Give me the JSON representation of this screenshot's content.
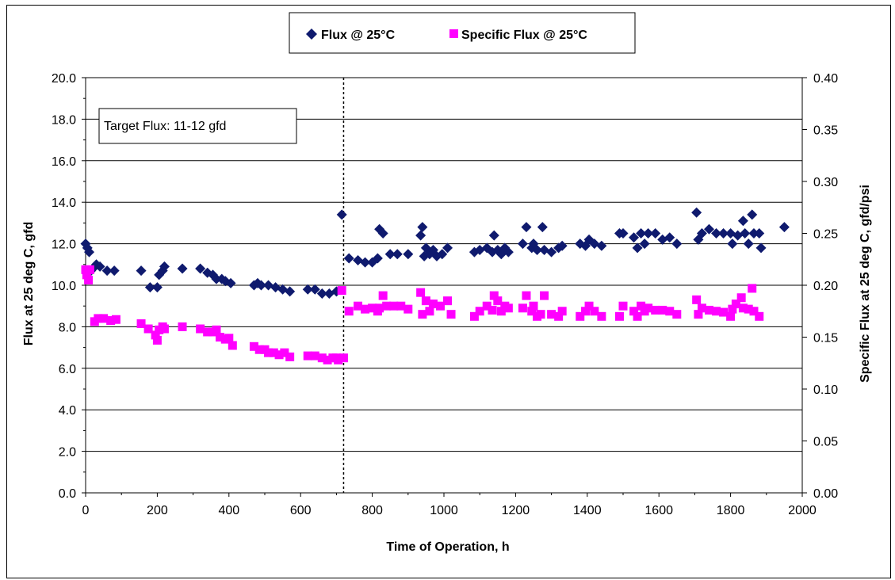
{
  "chart_data": {
    "type": "scatter",
    "title": "",
    "xlabel": "Time of Operation, h",
    "ylabel": "Flux at 25 deg C, gfd",
    "y2label": "Specific Flux at 25 deg C, gfd/psi",
    "xlim": [
      0,
      2000
    ],
    "ylim": [
      0,
      20
    ],
    "y2lim": [
      0,
      0.4
    ],
    "x_ticks": [
      "0",
      "200",
      "400",
      "600",
      "800",
      "1000",
      "1200",
      "1400",
      "1600",
      "1800",
      "2000"
    ],
    "y_ticks": [
      "0.0",
      "2.0",
      "4.0",
      "6.0",
      "8.0",
      "10.0",
      "12.0",
      "14.0",
      "16.0",
      "18.0",
      "20.0"
    ],
    "y2_ticks": [
      "0.00",
      "0.05",
      "0.10",
      "0.15",
      "0.20",
      "0.25",
      "0.30",
      "0.35",
      "0.40"
    ],
    "grid": true,
    "legend_position": "top-center",
    "annotation": "Target Flux: 11-12 gfd",
    "vline_x": 720,
    "series": [
      {
        "name": "Flux  @ 25°C",
        "axis": "left",
        "marker": "diamond",
        "color": "#0f1a6e",
        "points": [
          [
            0,
            12.0
          ],
          [
            5,
            11.8
          ],
          [
            10,
            11.6
          ],
          [
            15,
            10.7
          ],
          [
            20,
            10.8
          ],
          [
            30,
            11.0
          ],
          [
            40,
            10.9
          ],
          [
            60,
            10.7
          ],
          [
            80,
            10.7
          ],
          [
            155,
            10.7
          ],
          [
            180,
            9.9
          ],
          [
            200,
            9.9
          ],
          [
            205,
            10.5
          ],
          [
            215,
            10.7
          ],
          [
            220,
            10.9
          ],
          [
            270,
            10.8
          ],
          [
            320,
            10.8
          ],
          [
            340,
            10.6
          ],
          [
            355,
            10.5
          ],
          [
            365,
            10.3
          ],
          [
            380,
            10.3
          ],
          [
            390,
            10.2
          ],
          [
            405,
            10.1
          ],
          [
            470,
            10.0
          ],
          [
            480,
            10.1
          ],
          [
            490,
            10.0
          ],
          [
            510,
            10.0
          ],
          [
            530,
            9.9
          ],
          [
            550,
            9.8
          ],
          [
            570,
            9.7
          ],
          [
            620,
            9.8
          ],
          [
            640,
            9.8
          ],
          [
            660,
            9.6
          ],
          [
            680,
            9.6
          ],
          [
            700,
            9.7
          ],
          [
            715,
            13.4
          ],
          [
            735,
            11.3
          ],
          [
            760,
            11.2
          ],
          [
            780,
            11.1
          ],
          [
            800,
            11.1
          ],
          [
            815,
            11.3
          ],
          [
            820,
            12.7
          ],
          [
            830,
            12.5
          ],
          [
            850,
            11.5
          ],
          [
            870,
            11.5
          ],
          [
            900,
            11.5
          ],
          [
            935,
            12.4
          ],
          [
            940,
            12.8
          ],
          [
            945,
            11.4
          ],
          [
            950,
            11.8
          ],
          [
            960,
            11.5
          ],
          [
            970,
            11.7
          ],
          [
            980,
            11.4
          ],
          [
            995,
            11.5
          ],
          [
            1010,
            11.8
          ],
          [
            1085,
            11.6
          ],
          [
            1100,
            11.7
          ],
          [
            1120,
            11.8
          ],
          [
            1135,
            11.6
          ],
          [
            1140,
            12.4
          ],
          [
            1150,
            11.7
          ],
          [
            1160,
            11.5
          ],
          [
            1170,
            11.8
          ],
          [
            1180,
            11.6
          ],
          [
            1220,
            12.0
          ],
          [
            1230,
            12.8
          ],
          [
            1245,
            11.8
          ],
          [
            1250,
            12.0
          ],
          [
            1260,
            11.7
          ],
          [
            1275,
            12.8
          ],
          [
            1280,
            11.7
          ],
          [
            1300,
            11.6
          ],
          [
            1320,
            11.8
          ],
          [
            1330,
            11.9
          ],
          [
            1380,
            12.0
          ],
          [
            1395,
            11.9
          ],
          [
            1405,
            12.2
          ],
          [
            1420,
            12.0
          ],
          [
            1440,
            11.9
          ],
          [
            1490,
            12.5
          ],
          [
            1500,
            12.5
          ],
          [
            1530,
            12.3
          ],
          [
            1540,
            11.8
          ],
          [
            1550,
            12.5
          ],
          [
            1560,
            12.0
          ],
          [
            1570,
            12.5
          ],
          [
            1590,
            12.5
          ],
          [
            1610,
            12.2
          ],
          [
            1630,
            12.3
          ],
          [
            1650,
            12.0
          ],
          [
            1705,
            13.5
          ],
          [
            1710,
            12.2
          ],
          [
            1720,
            12.5
          ],
          [
            1740,
            12.7
          ],
          [
            1760,
            12.5
          ],
          [
            1780,
            12.5
          ],
          [
            1800,
            12.5
          ],
          [
            1805,
            12.0
          ],
          [
            1820,
            12.4
          ],
          [
            1835,
            13.1
          ],
          [
            1840,
            12.5
          ],
          [
            1850,
            12.0
          ],
          [
            1860,
            13.4
          ],
          [
            1865,
            12.5
          ],
          [
            1880,
            12.5
          ],
          [
            1885,
            11.8
          ],
          [
            1950,
            12.8
          ]
        ]
      },
      {
        "name": "Specific Flux  @ 25°C",
        "axis": "right",
        "marker": "square",
        "color": "#ff00ff",
        "points": [
          [
            0,
            0.215
          ],
          [
            3,
            0.21
          ],
          [
            8,
            0.205
          ],
          [
            12,
            0.215
          ],
          [
            25,
            0.165
          ],
          [
            35,
            0.168
          ],
          [
            50,
            0.168
          ],
          [
            70,
            0.166
          ],
          [
            85,
            0.167
          ],
          [
            155,
            0.163
          ],
          [
            175,
            0.158
          ],
          [
            195,
            0.152
          ],
          [
            200,
            0.147
          ],
          [
            205,
            0.157
          ],
          [
            215,
            0.16
          ],
          [
            220,
            0.158
          ],
          [
            270,
            0.16
          ],
          [
            320,
            0.158
          ],
          [
            340,
            0.155
          ],
          [
            355,
            0.155
          ],
          [
            365,
            0.157
          ],
          [
            375,
            0.15
          ],
          [
            390,
            0.148
          ],
          [
            400,
            0.149
          ],
          [
            410,
            0.142
          ],
          [
            470,
            0.141
          ],
          [
            485,
            0.138
          ],
          [
            500,
            0.138
          ],
          [
            510,
            0.135
          ],
          [
            525,
            0.135
          ],
          [
            540,
            0.133
          ],
          [
            555,
            0.135
          ],
          [
            570,
            0.131
          ],
          [
            620,
            0.132
          ],
          [
            640,
            0.132
          ],
          [
            660,
            0.13
          ],
          [
            675,
            0.128
          ],
          [
            690,
            0.13
          ],
          [
            700,
            0.13
          ],
          [
            705,
            0.128
          ],
          [
            715,
            0.195
          ],
          [
            720,
            0.13
          ],
          [
            735,
            0.175
          ],
          [
            760,
            0.18
          ],
          [
            780,
            0.177
          ],
          [
            800,
            0.178
          ],
          [
            815,
            0.175
          ],
          [
            820,
            0.178
          ],
          [
            830,
            0.19
          ],
          [
            840,
            0.18
          ],
          [
            860,
            0.18
          ],
          [
            880,
            0.18
          ],
          [
            900,
            0.177
          ],
          [
            935,
            0.193
          ],
          [
            940,
            0.172
          ],
          [
            950,
            0.185
          ],
          [
            960,
            0.175
          ],
          [
            970,
            0.182
          ],
          [
            990,
            0.18
          ],
          [
            1010,
            0.185
          ],
          [
            1020,
            0.172
          ],
          [
            1085,
            0.17
          ],
          [
            1100,
            0.175
          ],
          [
            1120,
            0.18
          ],
          [
            1135,
            0.176
          ],
          [
            1140,
            0.19
          ],
          [
            1150,
            0.185
          ],
          [
            1160,
            0.175
          ],
          [
            1170,
            0.18
          ],
          [
            1180,
            0.178
          ],
          [
            1220,
            0.178
          ],
          [
            1230,
            0.19
          ],
          [
            1245,
            0.175
          ],
          [
            1250,
            0.18
          ],
          [
            1260,
            0.17
          ],
          [
            1270,
            0.172
          ],
          [
            1280,
            0.19
          ],
          [
            1300,
            0.172
          ],
          [
            1320,
            0.17
          ],
          [
            1330,
            0.175
          ],
          [
            1380,
            0.17
          ],
          [
            1395,
            0.175
          ],
          [
            1405,
            0.18
          ],
          [
            1420,
            0.175
          ],
          [
            1440,
            0.17
          ],
          [
            1490,
            0.17
          ],
          [
            1500,
            0.18
          ],
          [
            1530,
            0.175
          ],
          [
            1540,
            0.17
          ],
          [
            1550,
            0.18
          ],
          [
            1560,
            0.175
          ],
          [
            1570,
            0.178
          ],
          [
            1590,
            0.176
          ],
          [
            1610,
            0.176
          ],
          [
            1630,
            0.175
          ],
          [
            1650,
            0.172
          ],
          [
            1705,
            0.186
          ],
          [
            1710,
            0.172
          ],
          [
            1720,
            0.178
          ],
          [
            1740,
            0.176
          ],
          [
            1760,
            0.175
          ],
          [
            1780,
            0.174
          ],
          [
            1800,
            0.17
          ],
          [
            1805,
            0.177
          ],
          [
            1815,
            0.182
          ],
          [
            1830,
            0.188
          ],
          [
            1835,
            0.178
          ],
          [
            1850,
            0.177
          ],
          [
            1860,
            0.197
          ],
          [
            1865,
            0.175
          ],
          [
            1880,
            0.17
          ]
        ]
      }
    ]
  }
}
